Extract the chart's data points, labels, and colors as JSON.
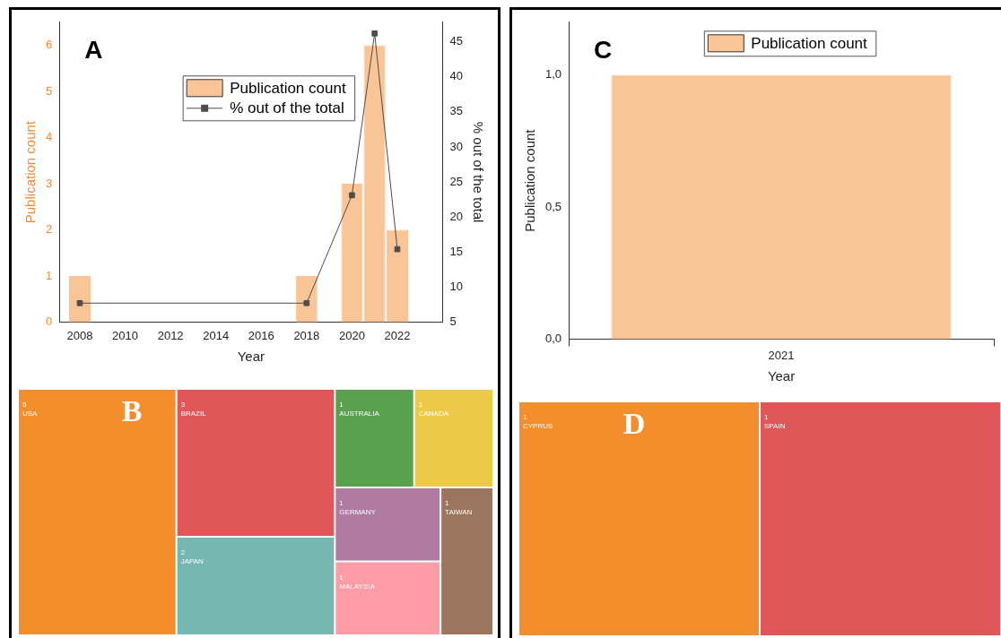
{
  "chart_data": [
    {
      "type": "bar",
      "title": "A",
      "xlabel": "Year",
      "ylabel": "Publication count",
      "y2label": "% out of the total",
      "x": [
        2008,
        2018,
        2020,
        2021,
        2022
      ],
      "series": [
        {
          "name": "Publication count",
          "type": "bar",
          "color": "#f9c597",
          "values": [
            1,
            1,
            3,
            6,
            2
          ]
        },
        {
          "name": "% out of the total",
          "type": "line",
          "axis": "y2",
          "color": "#4d4d4d",
          "values": [
            7.7,
            7.7,
            23.1,
            46.2,
            15.4
          ]
        }
      ],
      "xlim": [
        2007.1,
        2024
      ],
      "xticks": [
        2008,
        2010,
        2012,
        2014,
        2016,
        2018,
        2020,
        2022
      ],
      "ylim": [
        0,
        6.5
      ],
      "yticks": [
        0,
        1,
        2,
        3,
        4,
        5,
        6
      ],
      "y2lim": [
        5,
        47.8
      ],
      "y2ticks": [
        5,
        10,
        15,
        20,
        25,
        30,
        35,
        40,
        45
      ],
      "marker": "square",
      "legend": "top"
    },
    {
      "type": "other",
      "title": "B",
      "categories": [
        "USA",
        "BRAZIL",
        "JAPAN",
        "AUSTRALIA",
        "CANADA",
        "GERMANY",
        "MALAYSIA",
        "TAIWAN"
      ],
      "values": [
        5,
        3,
        2,
        1,
        1,
        1,
        1,
        1
      ],
      "colors": [
        "#f28e2b",
        "#e15759",
        "#76b7b2",
        "#59a14f",
        "#edc948",
        "#b07aa1",
        "#ff9da7",
        "#9c755f"
      ],
      "data_labels": true
    },
    {
      "type": "bar",
      "title": "C",
      "xlabel": "Year",
      "ylabel": "Publication count",
      "categories": [
        "2021"
      ],
      "series": [
        {
          "name": "Publication count",
          "color": "#f9c597",
          "values": [
            1
          ]
        }
      ],
      "ylim": [
        0,
        1.2
      ],
      "yticks": [
        {
          "value": 0,
          "label": "0,0"
        },
        {
          "value": 0.5,
          "label": "0,5"
        },
        {
          "value": 1,
          "label": "1,0"
        }
      ],
      "legend": "top"
    },
    {
      "type": "other",
      "title": "D",
      "categories": [
        "CYPRUS",
        "SPAIN"
      ],
      "values": [
        1,
        1
      ],
      "colors": [
        "#f28e2b",
        "#e15759"
      ],
      "data_labels": true
    }
  ]
}
